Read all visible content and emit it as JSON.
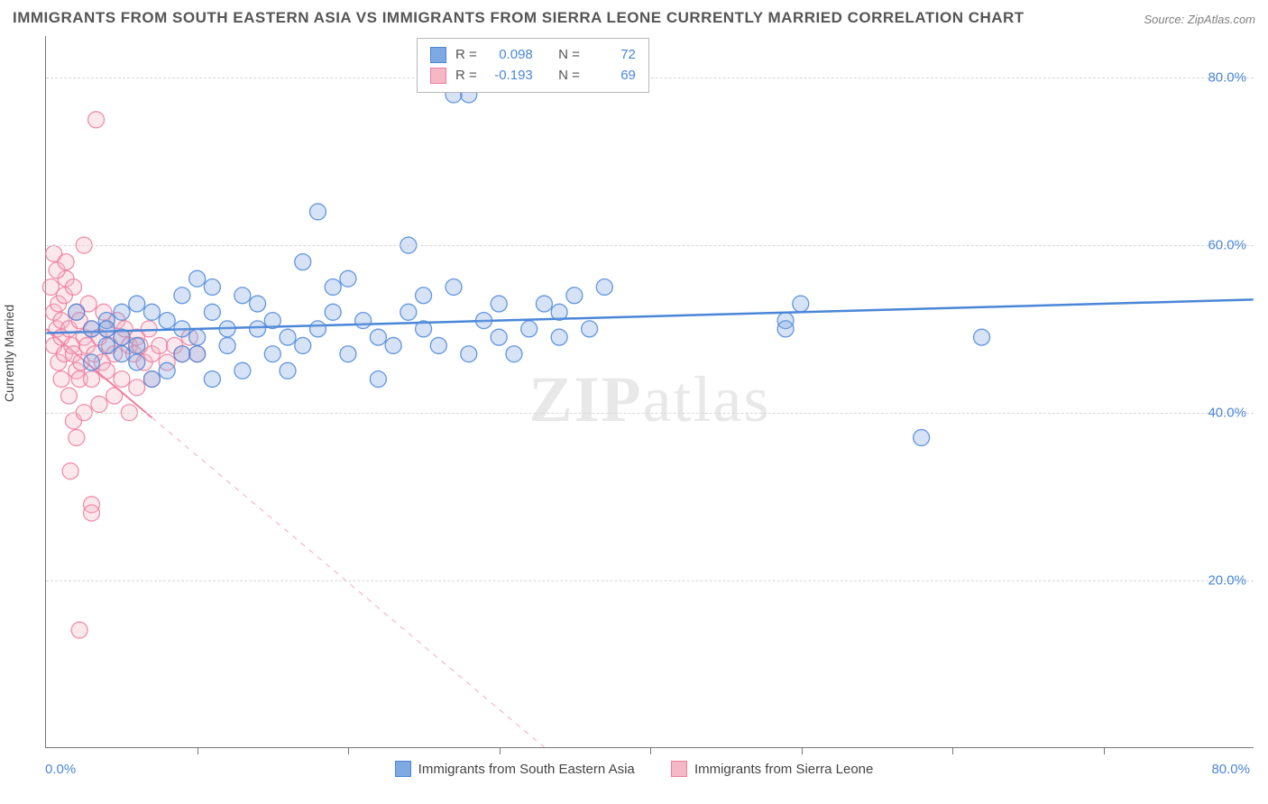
{
  "title": "IMMIGRANTS FROM SOUTH EASTERN ASIA VS IMMIGRANTS FROM SIERRA LEONE CURRENTLY MARRIED CORRELATION CHART",
  "source": "Source: ZipAtlas.com",
  "watermark_a": "ZIP",
  "watermark_b": "atlas",
  "chart": {
    "type": "scatter",
    "y_axis_title": "Currently Married",
    "xlim": [
      0,
      80
    ],
    "ylim": [
      0,
      85
    ],
    "y_ticks": [
      20,
      40,
      60,
      80
    ],
    "y_tick_labels": [
      "20.0%",
      "40.0%",
      "60.0%",
      "80.0%"
    ],
    "x_ticks": [
      10,
      20,
      30,
      40,
      50,
      60,
      70
    ],
    "x_min_label": "0.0%",
    "x_max_label": "80.0%",
    "background_color": "#ffffff",
    "grid_color": "#d8d8d8",
    "axis_color": "#777777",
    "tick_label_color": "#4a86d8",
    "marker_radius": 9,
    "marker_opacity": 0.32,
    "marker_stroke_opacity": 0.85,
    "series": [
      {
        "name": "Immigrants from South Eastern Asia",
        "color": "#7fa9e3",
        "stroke": "#4a86d8",
        "r_value": "0.098",
        "n_value": "72",
        "trend": {
          "x1": 0,
          "y1": 49.5,
          "x2": 80,
          "y2": 53.5,
          "solid_until_x": 80,
          "width": 2.5
        },
        "points": [
          [
            2,
            52
          ],
          [
            3,
            50
          ],
          [
            4,
            51
          ],
          [
            4,
            48
          ],
          [
            5,
            49
          ],
          [
            5,
            47
          ],
          [
            6,
            53
          ],
          [
            6,
            48
          ],
          [
            7,
            52
          ],
          [
            7,
            44
          ],
          [
            8,
            51
          ],
          [
            8,
            45
          ],
          [
            9,
            54
          ],
          [
            9,
            50
          ],
          [
            9,
            47
          ],
          [
            10,
            56
          ],
          [
            10,
            49
          ],
          [
            10,
            47
          ],
          [
            11,
            55
          ],
          [
            11,
            52
          ],
          [
            11,
            44
          ],
          [
            12,
            48
          ],
          [
            12,
            50
          ],
          [
            13,
            45
          ],
          [
            13,
            54
          ],
          [
            14,
            50
          ],
          [
            14,
            53
          ],
          [
            15,
            51
          ],
          [
            15,
            47
          ],
          [
            16,
            49
          ],
          [
            16,
            45
          ],
          [
            17,
            58
          ],
          [
            17,
            48
          ],
          [
            18,
            64
          ],
          [
            18,
            50
          ],
          [
            19,
            52
          ],
          [
            19,
            55
          ],
          [
            20,
            47
          ],
          [
            20,
            56
          ],
          [
            21,
            51
          ],
          [
            22,
            44
          ],
          [
            22,
            49
          ],
          [
            23,
            48
          ],
          [
            24,
            52
          ],
          [
            24,
            60
          ],
          [
            25,
            54
          ],
          [
            25,
            50
          ],
          [
            26,
            48
          ],
          [
            27,
            55
          ],
          [
            27,
            78
          ],
          [
            28,
            78
          ],
          [
            28,
            47
          ],
          [
            29,
            51
          ],
          [
            30,
            49
          ],
          [
            30,
            53
          ],
          [
            31,
            47
          ],
          [
            32,
            50
          ],
          [
            33,
            53
          ],
          [
            34,
            49
          ],
          [
            34,
            52
          ],
          [
            35,
            54
          ],
          [
            36,
            50
          ],
          [
            37,
            55
          ],
          [
            49,
            51
          ],
          [
            50,
            53
          ],
          [
            49,
            50
          ],
          [
            58,
            37
          ],
          [
            62,
            49
          ],
          [
            3,
            46
          ],
          [
            4,
            50
          ],
          [
            5,
            52
          ],
          [
            6,
            46
          ]
        ]
      },
      {
        "name": "Immigrants from Sierra Leone",
        "color": "#f4b8c6",
        "stroke": "#ef7d9e",
        "r_value": "-0.193",
        "n_value": "69",
        "trend": {
          "x1": 0,
          "y1": 50,
          "x2": 33,
          "y2": 0,
          "solid_until_x": 7,
          "width": 2
        },
        "points": [
          [
            0.3,
            55
          ],
          [
            0.5,
            52
          ],
          [
            0.5,
            48
          ],
          [
            0.7,
            50
          ],
          [
            0.8,
            53
          ],
          [
            0.8,
            46
          ],
          [
            1,
            51
          ],
          [
            1,
            49
          ],
          [
            1,
            44
          ],
          [
            1.2,
            54
          ],
          [
            1.2,
            47
          ],
          [
            1.3,
            56
          ],
          [
            1.5,
            50
          ],
          [
            1.5,
            42
          ],
          [
            1.6,
            33
          ],
          [
            1.7,
            48
          ],
          [
            1.8,
            47
          ],
          [
            1.8,
            39
          ],
          [
            2,
            52
          ],
          [
            2,
            45
          ],
          [
            2,
            37
          ],
          [
            2.2,
            51
          ],
          [
            2.2,
            44
          ],
          [
            2.3,
            46
          ],
          [
            2.5,
            60
          ],
          [
            2.5,
            49
          ],
          [
            2.5,
            40
          ],
          [
            2.7,
            48
          ],
          [
            2.8,
            53
          ],
          [
            3,
            50
          ],
          [
            3,
            44
          ],
          [
            3,
            29
          ],
          [
            3,
            28
          ],
          [
            3.2,
            47
          ],
          [
            3.3,
            75
          ],
          [
            3.5,
            49
          ],
          [
            3.5,
            41
          ],
          [
            3.7,
            46
          ],
          [
            3.8,
            52
          ],
          [
            4,
            50
          ],
          [
            4,
            45
          ],
          [
            4.2,
            48
          ],
          [
            4.5,
            47
          ],
          [
            4.5,
            42
          ],
          [
            4.7,
            51
          ],
          [
            5,
            49
          ],
          [
            5,
            44
          ],
          [
            5.2,
            50
          ],
          [
            5.5,
            48
          ],
          [
            5.5,
            40
          ],
          [
            5.8,
            47
          ],
          [
            6,
            49
          ],
          [
            6,
            43
          ],
          [
            6.2,
            48
          ],
          [
            6.5,
            46
          ],
          [
            6.8,
            50
          ],
          [
            7,
            47
          ],
          [
            7,
            44
          ],
          [
            7.5,
            48
          ],
          [
            8,
            46
          ],
          [
            8.5,
            48
          ],
          [
            9,
            47
          ],
          [
            9.5,
            49
          ],
          [
            10,
            47
          ],
          [
            2.2,
            14
          ],
          [
            0.5,
            59
          ],
          [
            0.7,
            57
          ],
          [
            1.3,
            58
          ],
          [
            1.8,
            55
          ]
        ]
      }
    ]
  },
  "legend_stats": {
    "r_label": "R  =",
    "n_label": "N  ="
  },
  "bottom_legend_names": [
    "Immigrants from South Eastern Asia",
    "Immigrants from Sierra Leone"
  ]
}
